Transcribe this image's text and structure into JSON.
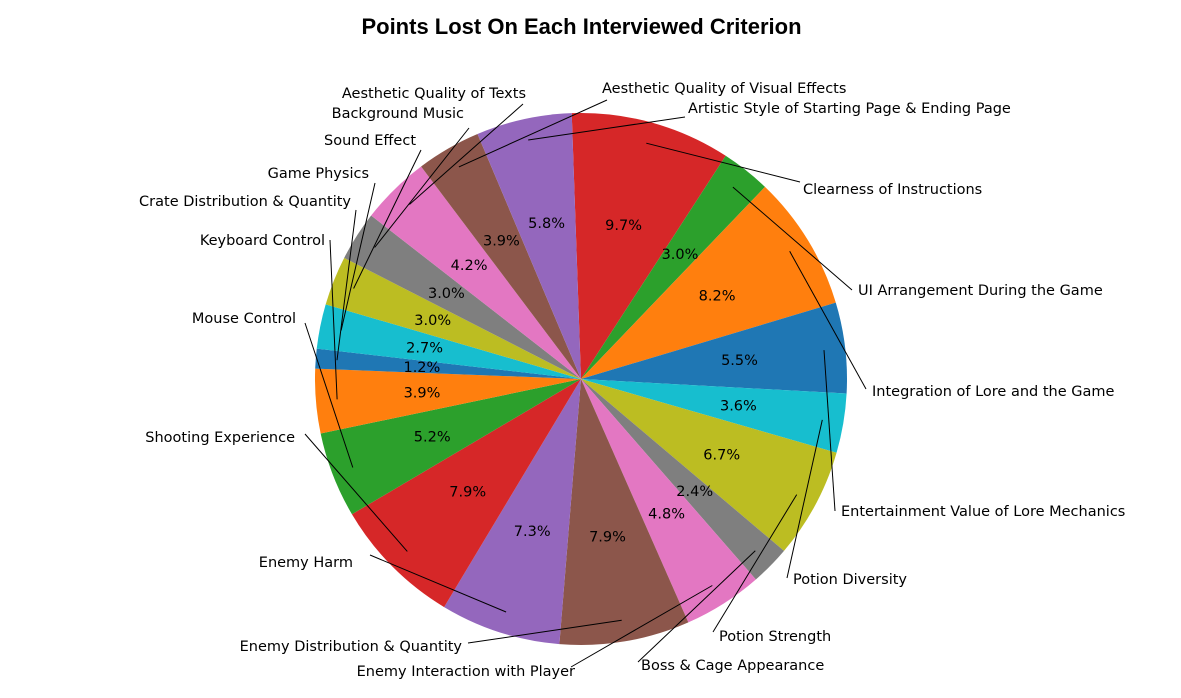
{
  "chart_data": {
    "type": "pie",
    "title": "Points Lost On Each Interviewed Criterion",
    "slices": [
      {
        "label": "Clearness of Instructions",
        "value": 9.7,
        "pct_label": "9.7%",
        "color": "#d62728"
      },
      {
        "label": "UI Arrangement During the Game",
        "value": 3.0,
        "pct_label": "3.0%",
        "color": "#2ca02c"
      },
      {
        "label": "Integration of Lore and the Game",
        "value": 8.2,
        "pct_label": "8.2%",
        "color": "#ff7f0e"
      },
      {
        "label": "Entertainment Value of Lore Mechanics",
        "value": 5.5,
        "pct_label": "5.5%",
        "color": "#1f77b4"
      },
      {
        "label": "Potion Diversity",
        "value": 3.6,
        "pct_label": "3.6%",
        "color": "#17becf"
      },
      {
        "label": "Potion Strength",
        "value": 6.7,
        "pct_label": "6.7%",
        "color": "#bcbd22"
      },
      {
        "label": "Boss & Cage Appearance",
        "value": 2.4,
        "pct_label": "2.4%",
        "color": "#7f7f7f"
      },
      {
        "label": "Enemy Interaction with Player",
        "value": 4.8,
        "pct_label": "4.8%",
        "color": "#e377c2"
      },
      {
        "label": "Enemy Distribution & Quantity",
        "value": 7.9,
        "pct_label": "7.9%",
        "color": "#8c564b"
      },
      {
        "label": "Enemy Harm",
        "value": 7.3,
        "pct_label": "7.3%",
        "color": "#9467bd"
      },
      {
        "label": "Shooting Experience",
        "value": 7.9,
        "pct_label": "7.9%",
        "color": "#d62728"
      },
      {
        "label": "Mouse Control",
        "value": 5.2,
        "pct_label": "5.2%",
        "color": "#2ca02c"
      },
      {
        "label": "Keyboard Control",
        "value": 3.9,
        "pct_label": "3.9%",
        "color": "#ff7f0e"
      },
      {
        "label": "Crate Distribution & Quantity",
        "value": 1.2,
        "pct_label": "1.2%",
        "color": "#1f77b4"
      },
      {
        "label": "Game Physics",
        "value": 2.7,
        "pct_label": "2.7%",
        "color": "#17becf"
      },
      {
        "label": "Sound Effect",
        "value": 3.0,
        "pct_label": "3.0%",
        "color": "#bcbd22"
      },
      {
        "label": "Background Music",
        "value": 3.0,
        "pct_label": "3.0%",
        "color": "#7f7f7f"
      },
      {
        "label": "Aesthetic Quality of Texts",
        "value": 4.2,
        "pct_label": "4.2%",
        "color": "#e377c2"
      },
      {
        "label": "Aesthetic Quality of Visual Effects",
        "value": 3.9,
        "pct_label": "3.9%",
        "color": "#8c564b"
      },
      {
        "label": "Artistic Style of Starting Page & Ending Page",
        "value": 5.8,
        "pct_label": "5.8%",
        "color": "#9467bd"
      }
    ],
    "direction": "clockwise",
    "legend": "none"
  }
}
